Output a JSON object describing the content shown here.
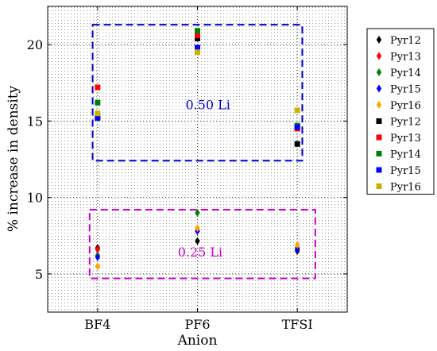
{
  "chart_data": {
    "type": "scatter",
    "title": "",
    "xlabel": "Anion",
    "ylabel": "% increase in density",
    "categories": [
      "BF4",
      "PF6",
      "TFSI"
    ],
    "xlim": [
      -0.5,
      2.5
    ],
    "ylim": [
      2.5,
      22.5
    ],
    "yticks": [
      5,
      10,
      15,
      20
    ],
    "grid": true,
    "legend": "right-outside",
    "series": [
      {
        "name": "Pyr12",
        "marker": "diamond",
        "color": "#000000",
        "values": [
          6.7,
          7.15,
          6.5
        ]
      },
      {
        "name": "Pyr13",
        "marker": "diamond",
        "color": "#ff0000",
        "values": [
          6.6,
          7.8,
          6.6
        ]
      },
      {
        "name": "Pyr14",
        "marker": "diamond",
        "color": "#008000",
        "values": [
          6.2,
          9.0,
          6.7
        ]
      },
      {
        "name": "Pyr15",
        "marker": "diamond",
        "color": "#0000ff",
        "values": [
          6.1,
          7.8,
          6.6
        ]
      },
      {
        "name": "Pyr16",
        "marker": "diamond",
        "color": "#ffa500",
        "values": [
          5.5,
          8.0,
          6.9
        ]
      },
      {
        "name": "Pyr12",
        "marker": "square",
        "color": "#000000",
        "values": [
          15.3,
          20.4,
          13.5
        ]
      },
      {
        "name": "Pyr13",
        "marker": "square",
        "color": "#ff0000",
        "values": [
          17.2,
          20.6,
          14.5
        ]
      },
      {
        "name": "Pyr14",
        "marker": "square",
        "color": "#008000",
        "values": [
          16.2,
          20.9,
          14.7
        ]
      },
      {
        "name": "Pyr15",
        "marker": "square",
        "color": "#0000ff",
        "values": [
          15.2,
          19.8,
          14.6
        ]
      },
      {
        "name": "Pyr16",
        "marker": "square",
        "color": "#c8b400",
        "values": [
          15.5,
          19.5,
          15.7
        ]
      }
    ],
    "annotations": [
      {
        "text": "0.50 Li",
        "color": "#0000cc",
        "box": {
          "x": [
            -0.05,
            2.05
          ],
          "y": [
            12.4,
            21.3
          ]
        }
      },
      {
        "text": "0.25 Li",
        "color": "#cc00cc",
        "box": {
          "x": [
            -0.08,
            2.18
          ],
          "y": [
            4.7,
            9.2
          ]
        }
      }
    ]
  }
}
